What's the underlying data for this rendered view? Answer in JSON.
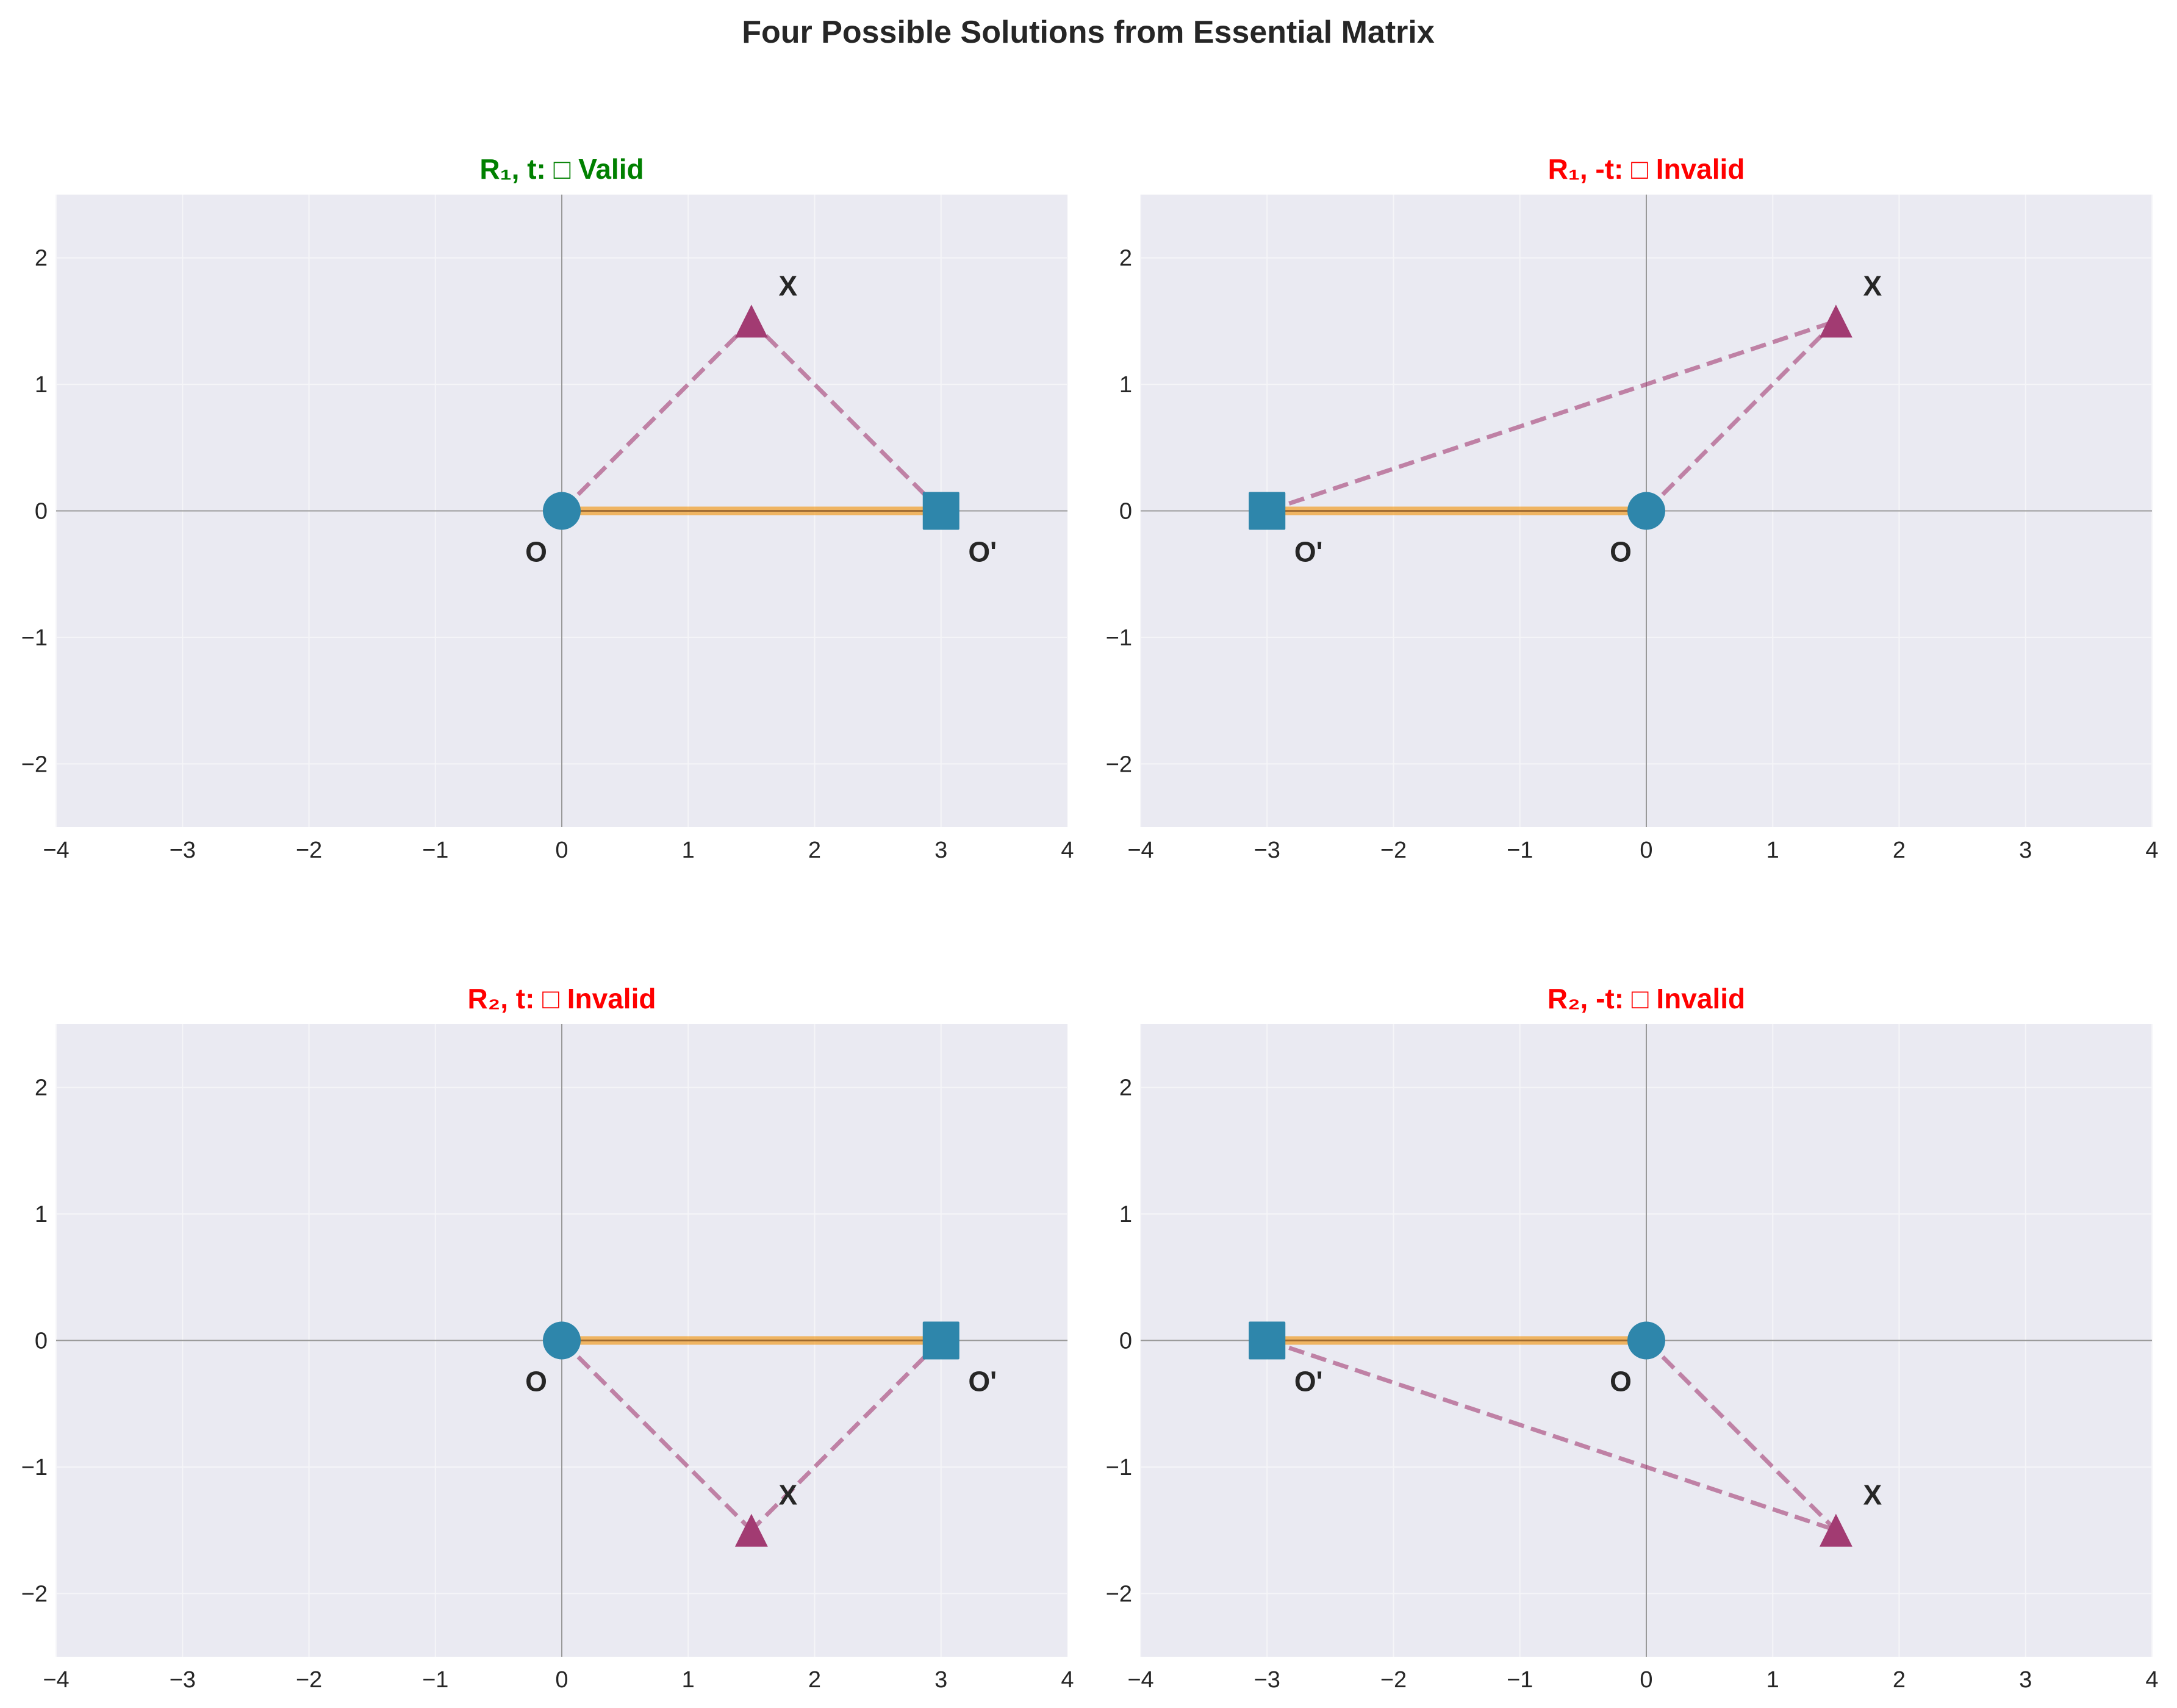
{
  "chart_data": {
    "type": "scatter",
    "title": "Four Possible Solutions from Essential Matrix",
    "colors": {
      "valid_title": "#008000",
      "invalid_title": "#ff0000",
      "camera": "#2e86ab",
      "point": "#a23b72",
      "baseline": "#f18f01",
      "baseline_core": "#8b5a2b",
      "ray": "#a23b72",
      "axes_bg": "#eaeaf2",
      "grid": "#f5f5f8",
      "zero_line": "#999999"
    },
    "xlim": [
      -4,
      4
    ],
    "ylim": [
      -2.5,
      2.5
    ],
    "xticks": [
      -4,
      -3,
      -2,
      -1,
      0,
      1,
      2,
      3,
      4
    ],
    "yticks": [
      -2,
      -1,
      0,
      1,
      2
    ],
    "xtick_labels": [
      "−4",
      "−3",
      "−2",
      "−1",
      "0",
      "1",
      "2",
      "3",
      "4"
    ],
    "ytick_labels": [
      "−2",
      "−1",
      "0",
      "1",
      "2"
    ],
    "grid": true,
    "panels": [
      {
        "title": "R₁, t: □ Valid",
        "status": "valid",
        "O": [
          0,
          0
        ],
        "O_label": "O",
        "O_prime": [
          3,
          0
        ],
        "O_prime_label": "O'",
        "X": [
          1.5,
          1.5
        ],
        "X_label": "X"
      },
      {
        "title": "R₁, -t: □ Invalid",
        "status": "invalid",
        "O": [
          0,
          0
        ],
        "O_label": "O",
        "O_prime": [
          -3,
          0
        ],
        "O_prime_label": "O'",
        "X": [
          1.5,
          1.5
        ],
        "X_label": "X"
      },
      {
        "title": "R₂, t: □ Invalid",
        "status": "invalid",
        "O": [
          0,
          0
        ],
        "O_label": "O",
        "O_prime": [
          3,
          0
        ],
        "O_prime_label": "O'",
        "X": [
          1.5,
          -1.5
        ],
        "X_label": "X"
      },
      {
        "title": "R₂, -t: □ Invalid",
        "status": "invalid",
        "O": [
          0,
          0
        ],
        "O_label": "O",
        "O_prime": [
          -3,
          0
        ],
        "O_prime_label": "O'",
        "X": [
          1.5,
          -1.5
        ],
        "X_label": "X"
      }
    ]
  }
}
